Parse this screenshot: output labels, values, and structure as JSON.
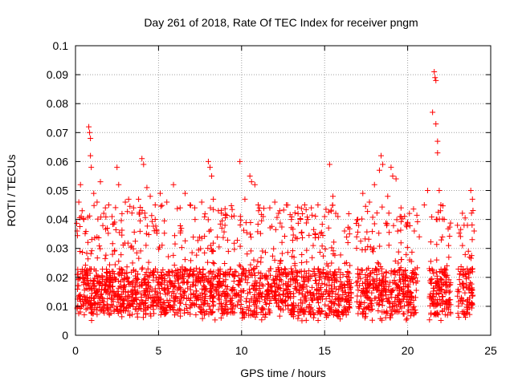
{
  "chart_data": {
    "type": "scatter",
    "title": "Day 261 of 2018, Rate Of TEC Index for receiver pngm",
    "xlabel": "GPS time / hours",
    "ylabel": "ROTI / TECUs",
    "xlim": [
      0,
      25
    ],
    "ylim": [
      0,
      0.1
    ],
    "xticks": [
      0,
      5,
      10,
      15,
      20,
      25
    ],
    "xtick_labels": [
      "0",
      "5",
      "10",
      "15",
      "20",
      "25"
    ],
    "yticks": [
      0,
      0.01,
      0.02,
      0.03,
      0.04,
      0.05,
      0.06,
      0.07,
      0.08,
      0.09,
      0.1
    ],
    "ytick_labels": [
      "0",
      "0.01",
      "0.02",
      "0.03",
      "0.04",
      "0.05",
      "0.06",
      "0.07",
      "0.08",
      "0.09",
      "0.1"
    ],
    "grid": true,
    "marker": "+",
    "color": "#ff0000",
    "series": [
      {
        "name": "ROTI",
        "points": [
          [
            0.1,
            0.036
          ],
          [
            0.2,
            0.046
          ],
          [
            0.3,
            0.052
          ],
          [
            0.4,
            0.043
          ],
          [
            0.5,
            0.04
          ],
          [
            0.8,
            0.072
          ],
          [
            0.85,
            0.07
          ],
          [
            0.9,
            0.068
          ],
          [
            0.9,
            0.062
          ],
          [
            0.95,
            0.058
          ],
          [
            1.1,
            0.049
          ],
          [
            1.3,
            0.046
          ],
          [
            1.5,
            0.053
          ],
          [
            1.8,
            0.044
          ],
          [
            2.0,
            0.045
          ],
          [
            2.2,
            0.041
          ],
          [
            2.5,
            0.058
          ],
          [
            2.6,
            0.052
          ],
          [
            2.8,
            0.042
          ],
          [
            3.0,
            0.046
          ],
          [
            3.2,
            0.047
          ],
          [
            3.5,
            0.044
          ],
          [
            3.8,
            0.047
          ],
          [
            4.0,
            0.061
          ],
          [
            4.1,
            0.059
          ],
          [
            4.3,
            0.051
          ],
          [
            4.5,
            0.048
          ],
          [
            4.8,
            0.045
          ],
          [
            5.1,
            0.049
          ],
          [
            5.5,
            0.046
          ],
          [
            5.9,
            0.052
          ],
          [
            6.3,
            0.044
          ],
          [
            6.6,
            0.049
          ],
          [
            6.9,
            0.045
          ],
          [
            7.2,
            0.04
          ],
          [
            7.6,
            0.046
          ],
          [
            8.0,
            0.06
          ],
          [
            8.1,
            0.058
          ],
          [
            8.2,
            0.055
          ],
          [
            8.3,
            0.047
          ],
          [
            8.6,
            0.043
          ],
          [
            9.0,
            0.038
          ],
          [
            9.4,
            0.041
          ],
          [
            9.9,
            0.06
          ],
          [
            10.2,
            0.047
          ],
          [
            10.5,
            0.055
          ],
          [
            10.6,
            0.053
          ],
          [
            10.8,
            0.052
          ],
          [
            11.0,
            0.045
          ],
          [
            11.3,
            0.041
          ],
          [
            11.7,
            0.044
          ],
          [
            12.0,
            0.046
          ],
          [
            12.3,
            0.043
          ],
          [
            12.7,
            0.045
          ],
          [
            13.0,
            0.04
          ],
          [
            13.4,
            0.042
          ],
          [
            13.8,
            0.045
          ],
          [
            14.2,
            0.044
          ],
          [
            14.6,
            0.045
          ],
          [
            15.0,
            0.041
          ],
          [
            15.3,
            0.059
          ],
          [
            15.5,
            0.048
          ],
          [
            15.8,
            0.041
          ],
          [
            16.2,
            0.036
          ],
          [
            16.5,
            0.035
          ],
          [
            17.0,
            0.04
          ],
          [
            17.3,
            0.049
          ],
          [
            17.7,
            0.046
          ],
          [
            18.0,
            0.052
          ],
          [
            18.3,
            0.057
          ],
          [
            18.4,
            0.062
          ],
          [
            18.5,
            0.059
          ],
          [
            18.8,
            0.048
          ],
          [
            19.0,
            0.058
          ],
          [
            19.1,
            0.055
          ],
          [
            19.3,
            0.054
          ],
          [
            19.6,
            0.044
          ],
          [
            20.0,
            0.039
          ],
          [
            20.4,
            0.036
          ],
          [
            20.7,
            0.034
          ],
          [
            21.0,
            0.045
          ],
          [
            21.2,
            0.05
          ],
          [
            21.5,
            0.077
          ],
          [
            21.6,
            0.091
          ],
          [
            21.65,
            0.089
          ],
          [
            21.7,
            0.088
          ],
          [
            21.7,
            0.073
          ],
          [
            21.8,
            0.067
          ],
          [
            21.8,
            0.063
          ],
          [
            21.9,
            0.05
          ],
          [
            22.0,
            0.045
          ],
          [
            22.2,
            0.04
          ],
          [
            23.0,
            0.038
          ],
          [
            23.3,
            0.031
          ],
          [
            23.6,
            0.038
          ],
          [
            23.8,
            0.05
          ],
          [
            23.9,
            0.047
          ],
          [
            24.0,
            0.036
          ]
        ]
      }
    ],
    "data_gaps_hours": [
      [
        16.6,
        16.9
      ],
      [
        20.6,
        21.3
      ],
      [
        22.6,
        23.0
      ]
    ],
    "background_band": {
      "ymin": 0.005,
      "ymax": 0.035,
      "typical": 0.015
    }
  }
}
